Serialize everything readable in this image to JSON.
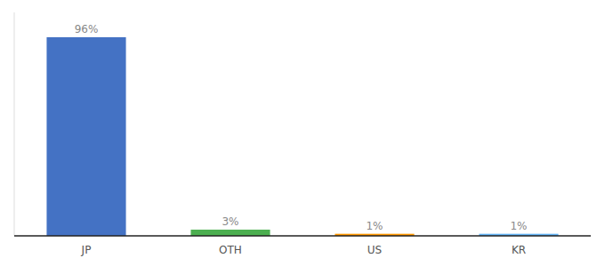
{
  "chart_data": {
    "type": "bar",
    "categories": [
      "JP",
      "OTH",
      "US",
      "KR"
    ],
    "values": [
      96,
      3,
      1,
      1
    ],
    "value_labels": [
      "96%",
      "3%",
      "1%",
      "1%"
    ],
    "colors": [
      "#4472c4",
      "#4caf50",
      "#ff9800",
      "#64b5f6"
    ],
    "ylim": [
      0,
      108
    ],
    "grid": false,
    "data_labels": true,
    "tick_labels": "x"
  }
}
